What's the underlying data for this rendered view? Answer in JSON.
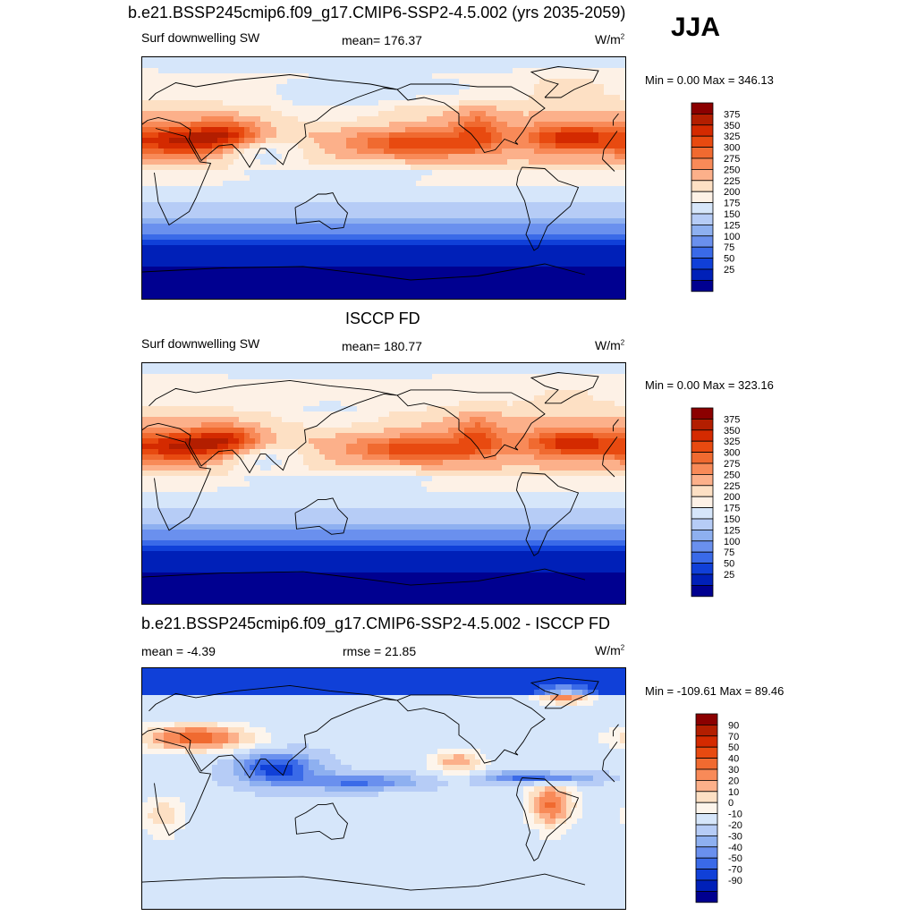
{
  "figure": {
    "season": "JJA"
  },
  "panels": [
    {
      "title": "b.e21.BSSP245cmip6.f09_g17.CMIP6-SSP2-4.5.002 (yrs 2035-2059)",
      "left_label": "Surf downwelling SW",
      "center_label": "mean= 176.37",
      "units_base": "W/m",
      "units_exp": "2",
      "minmax": "Min =   0.00 Max = 346.13",
      "colorbar_key": "sw",
      "field": "model"
    },
    {
      "title": "ISCCP FD",
      "left_label": "Surf downwelling SW",
      "center_label": "mean= 180.77",
      "units_base": "W/m",
      "units_exp": "2",
      "minmax": "Min =   0.00 Max = 323.16",
      "colorbar_key": "sw",
      "field": "obs"
    },
    {
      "title": "b.e21.BSSP245cmip6.f09_g17.CMIP6-SSP2-4.5.002 - ISCCP FD",
      "left_label": "mean =  -4.39",
      "center_label": "rmse =  21.85",
      "units_base": "W/m",
      "units_exp": "2",
      "minmax": "Min = -109.61 Max =  89.46",
      "colorbar_key": "diff",
      "field": "diff"
    }
  ],
  "colorbars": {
    "sw": {
      "labels": [
        "375",
        "350",
        "325",
        "300",
        "275",
        "250",
        "225",
        "200",
        "175",
        "150",
        "125",
        "100",
        "75",
        "50",
        "25"
      ],
      "colors": [
        "#8b0000",
        "#b31e00",
        "#d42a00",
        "#e84a10",
        "#f06a30",
        "#f88a58",
        "#fcb08a",
        "#fde0c4",
        "#fdf1e6",
        "#d6e6fa",
        "#b6ccf6",
        "#8eb0f0",
        "#6a90ee",
        "#3a6ae8",
        "#1040d8",
        "#0020b8",
        "#000090"
      ]
    },
    "diff": {
      "labels": [
        "90",
        "70",
        "50",
        "40",
        "30",
        "20",
        "10",
        "0",
        "-10",
        "-20",
        "-30",
        "-40",
        "-50",
        "-70",
        "-90"
      ],
      "colors": [
        "#8b0000",
        "#b31e00",
        "#d42a00",
        "#e84a10",
        "#f06a30",
        "#f88a58",
        "#fcb08a",
        "#fde0c4",
        "#fdf5ec",
        "#d6e6fa",
        "#b6ccf6",
        "#8eb0f0",
        "#6a90ee",
        "#3a6ae8",
        "#1040d8",
        "#0020b8",
        "#000090"
      ]
    }
  },
  "chart_data": {
    "type": "heatmap",
    "variable": "Surf downwelling SW",
    "season": "JJA",
    "units": "W/m2",
    "maps": [
      {
        "name": "b.e21.BSSP245cmip6.f09_g17.CMIP6-SSP2-4.5.002 (yrs 2035-2059)",
        "mean": 176.37,
        "min": 0.0,
        "max": 346.13
      },
      {
        "name": "ISCCP FD",
        "mean": 180.77,
        "min": 0.0,
        "max": 323.16
      },
      {
        "name": "b.e21.BSSP245cmip6.f09_g17.CMIP6-SSP2-4.5.002 - ISCCP FD",
        "mean": -4.39,
        "rmse": 21.85,
        "min": -109.61,
        "max": 89.46
      }
    ],
    "levels_sw": [
      25,
      50,
      75,
      100,
      125,
      150,
      175,
      200,
      225,
      250,
      275,
      300,
      325,
      350,
      375
    ],
    "levels_diff": [
      -90,
      -70,
      -50,
      -40,
      -30,
      -20,
      -10,
      0,
      10,
      20,
      30,
      40,
      50,
      70,
      90
    ]
  }
}
